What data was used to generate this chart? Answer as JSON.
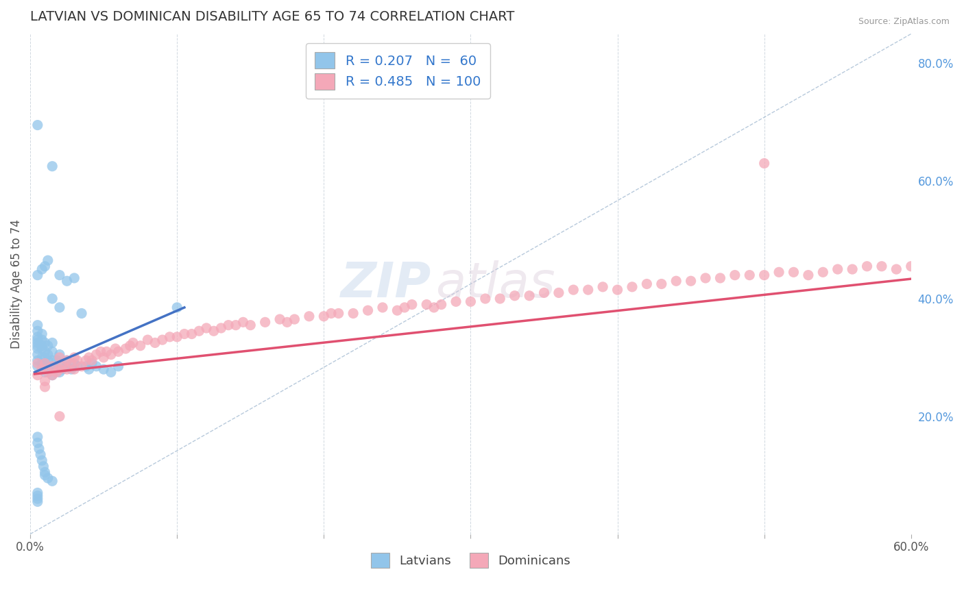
{
  "title": "LATVIAN VS DOMINICAN DISABILITY AGE 65 TO 74 CORRELATION CHART",
  "source": "Source: ZipAtlas.com",
  "ylabel": "Disability Age 65 to 74",
  "xlim": [
    0.0,
    0.6
  ],
  "ylim": [
    0.0,
    0.85
  ],
  "x_tick_positions": [
    0.0,
    0.1,
    0.2,
    0.3,
    0.4,
    0.5,
    0.6
  ],
  "x_tick_labels": [
    "0.0%",
    "",
    "",
    "",
    "",
    "",
    "60.0%"
  ],
  "y_ticks_right": [
    0.2,
    0.4,
    0.6,
    0.8
  ],
  "y_tick_labels_right": [
    "20.0%",
    "40.0%",
    "60.0%",
    "80.0%"
  ],
  "latvian_R": 0.207,
  "latvian_N": 60,
  "dominican_R": 0.485,
  "dominican_N": 100,
  "latvian_color": "#92c5ea",
  "dominican_color": "#f4a8b8",
  "latvian_line_color": "#4472c4",
  "dominican_line_color": "#e05070",
  "diagonal_color": "#b0c4d8",
  "watermark_zip": "ZIP",
  "watermark_atlas": "atlas",
  "latvian_x": [
    0.005,
    0.005,
    0.005,
    0.005,
    0.005,
    0.005,
    0.005,
    0.005,
    0.005,
    0.005,
    0.008,
    0.008,
    0.008,
    0.008,
    0.008,
    0.008,
    0.008,
    0.01,
    0.01,
    0.01,
    0.01,
    0.01,
    0.012,
    0.012,
    0.012,
    0.012,
    0.015,
    0.015,
    0.015,
    0.015,
    0.015,
    0.018,
    0.018,
    0.02,
    0.02,
    0.02,
    0.022,
    0.025,
    0.025,
    0.028,
    0.03,
    0.032,
    0.035,
    0.038,
    0.04,
    0.042,
    0.045,
    0.05,
    0.055,
    0.06,
    0.005,
    0.005,
    0.006,
    0.007,
    0.008,
    0.009,
    0.01,
    0.01,
    0.012,
    0.015
  ],
  "latvian_y": [
    0.285,
    0.295,
    0.305,
    0.315,
    0.32,
    0.325,
    0.33,
    0.335,
    0.345,
    0.355,
    0.28,
    0.29,
    0.3,
    0.315,
    0.32,
    0.33,
    0.34,
    0.275,
    0.285,
    0.3,
    0.31,
    0.325,
    0.28,
    0.295,
    0.305,
    0.32,
    0.27,
    0.285,
    0.295,
    0.31,
    0.325,
    0.28,
    0.295,
    0.275,
    0.29,
    0.305,
    0.28,
    0.285,
    0.295,
    0.28,
    0.29,
    0.285,
    0.375,
    0.285,
    0.28,
    0.29,
    0.285,
    0.28,
    0.275,
    0.285,
    0.165,
    0.155,
    0.145,
    0.135,
    0.125,
    0.115,
    0.105,
    0.1,
    0.095,
    0.09
  ],
  "latvian_outliers_x": [
    0.02,
    0.015,
    0.02,
    0.025,
    0.03,
    0.005,
    0.008,
    0.01,
    0.012,
    0.015,
    0.005,
    0.005,
    0.005,
    0.005,
    0.1,
    0.005
  ],
  "latvian_outliers_y": [
    0.385,
    0.625,
    0.44,
    0.43,
    0.435,
    0.44,
    0.45,
    0.455,
    0.465,
    0.4,
    0.055,
    0.06,
    0.065,
    0.07,
    0.385,
    0.695
  ],
  "dominican_x": [
    0.005,
    0.005,
    0.008,
    0.01,
    0.01,
    0.012,
    0.015,
    0.015,
    0.018,
    0.02,
    0.02,
    0.022,
    0.025,
    0.025,
    0.028,
    0.03,
    0.03,
    0.032,
    0.035,
    0.038,
    0.04,
    0.042,
    0.045,
    0.048,
    0.05,
    0.052,
    0.055,
    0.058,
    0.06,
    0.065,
    0.068,
    0.07,
    0.075,
    0.08,
    0.085,
    0.09,
    0.095,
    0.1,
    0.105,
    0.11,
    0.115,
    0.12,
    0.125,
    0.13,
    0.135,
    0.14,
    0.145,
    0.15,
    0.16,
    0.17,
    0.175,
    0.18,
    0.19,
    0.2,
    0.205,
    0.21,
    0.22,
    0.23,
    0.24,
    0.25,
    0.255,
    0.26,
    0.27,
    0.275,
    0.28,
    0.29,
    0.3,
    0.31,
    0.32,
    0.33,
    0.34,
    0.35,
    0.36,
    0.37,
    0.38,
    0.39,
    0.4,
    0.41,
    0.42,
    0.43,
    0.44,
    0.45,
    0.46,
    0.47,
    0.48,
    0.49,
    0.5,
    0.51,
    0.52,
    0.53,
    0.54,
    0.55,
    0.56,
    0.57,
    0.58,
    0.59,
    0.6,
    0.01,
    0.02,
    0.5
  ],
  "dominican_y": [
    0.27,
    0.29,
    0.28,
    0.26,
    0.29,
    0.275,
    0.27,
    0.285,
    0.275,
    0.28,
    0.3,
    0.285,
    0.28,
    0.295,
    0.29,
    0.28,
    0.3,
    0.295,
    0.285,
    0.295,
    0.3,
    0.295,
    0.305,
    0.31,
    0.3,
    0.31,
    0.305,
    0.315,
    0.31,
    0.315,
    0.32,
    0.325,
    0.32,
    0.33,
    0.325,
    0.33,
    0.335,
    0.335,
    0.34,
    0.34,
    0.345,
    0.35,
    0.345,
    0.35,
    0.355,
    0.355,
    0.36,
    0.355,
    0.36,
    0.365,
    0.36,
    0.365,
    0.37,
    0.37,
    0.375,
    0.375,
    0.375,
    0.38,
    0.385,
    0.38,
    0.385,
    0.39,
    0.39,
    0.385,
    0.39,
    0.395,
    0.395,
    0.4,
    0.4,
    0.405,
    0.405,
    0.41,
    0.41,
    0.415,
    0.415,
    0.42,
    0.415,
    0.42,
    0.425,
    0.425,
    0.43,
    0.43,
    0.435,
    0.435,
    0.44,
    0.44,
    0.44,
    0.445,
    0.445,
    0.44,
    0.445,
    0.45,
    0.45,
    0.455,
    0.455,
    0.45,
    0.455,
    0.25,
    0.2,
    0.63
  ]
}
